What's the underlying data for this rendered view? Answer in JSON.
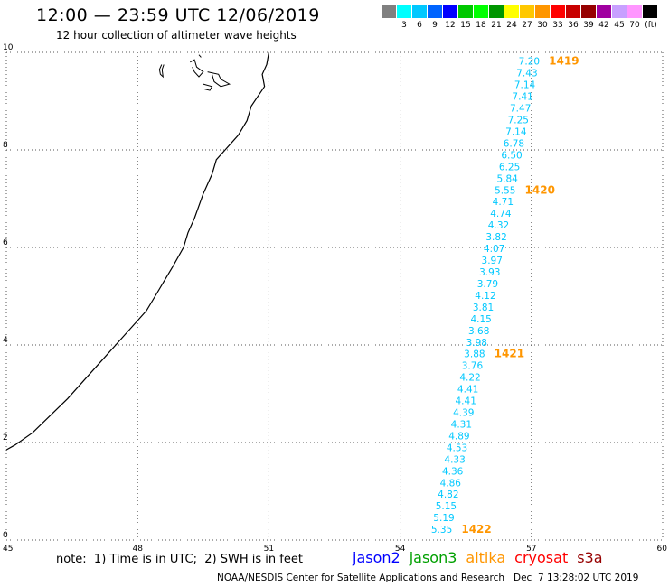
{
  "header": {
    "title": "12:00 — 23:59 UTC 12/06/2019",
    "subtitle": "12 hour collection of altimeter wave heights"
  },
  "color_scale": {
    "unit": "(ft)",
    "entries": [
      {
        "label": "",
        "color": "#808080"
      },
      {
        "label": "3",
        "color": "#00ffff"
      },
      {
        "label": "6",
        "color": "#00c8ff"
      },
      {
        "label": "9",
        "color": "#0064ff"
      },
      {
        "label": "12",
        "color": "#0000ff"
      },
      {
        "label": "15",
        "color": "#00c800"
      },
      {
        "label": "18",
        "color": "#00ff00"
      },
      {
        "label": "21",
        "color": "#009600"
      },
      {
        "label": "24",
        "color": "#ffff00"
      },
      {
        "label": "27",
        "color": "#ffc800"
      },
      {
        "label": "30",
        "color": "#ff9600"
      },
      {
        "label": "33",
        "color": "#ff0000"
      },
      {
        "label": "36",
        "color": "#c80000"
      },
      {
        "label": "39",
        "color": "#960000"
      },
      {
        "label": "42",
        "color": "#a000a0"
      },
      {
        "label": "45",
        "color": "#c8a0ff"
      },
      {
        "label": "70",
        "color": "#ff96ff"
      },
      {
        "label": "",
        "color": "#000000"
      }
    ]
  },
  "chart_data": {
    "type": "scatter",
    "xlim": [
      45,
      60
    ],
    "ylim": [
      0,
      10
    ],
    "x_ticks": [
      "45",
      "48",
      "51",
      "54",
      "57",
      "60"
    ],
    "y_ticks": [
      "0",
      "2",
      "4",
      "6",
      "8",
      "10"
    ],
    "grid": true,
    "point_color": "#00c8ff",
    "time_label_color": "#ff9600",
    "points": [
      {
        "x": 56.95,
        "y": 9.82,
        "value": "7.20"
      },
      {
        "x": 56.9,
        "y": 9.58,
        "value": "7.43"
      },
      {
        "x": 56.85,
        "y": 9.34,
        "value": "7.14"
      },
      {
        "x": 56.8,
        "y": 9.1,
        "value": "7.41"
      },
      {
        "x": 56.75,
        "y": 8.86,
        "value": "7.47"
      },
      {
        "x": 56.7,
        "y": 8.62,
        "value": "7.25"
      },
      {
        "x": 56.65,
        "y": 8.38,
        "value": "7.14"
      },
      {
        "x": 56.6,
        "y": 8.14,
        "value": "6.78"
      },
      {
        "x": 56.55,
        "y": 7.9,
        "value": "6.50"
      },
      {
        "x": 56.5,
        "y": 7.66,
        "value": "6.25"
      },
      {
        "x": 56.45,
        "y": 7.42,
        "value": "5.84"
      },
      {
        "x": 56.4,
        "y": 7.18,
        "value": "5.55"
      },
      {
        "x": 56.35,
        "y": 6.94,
        "value": "4.71"
      },
      {
        "x": 56.3,
        "y": 6.7,
        "value": "4.74"
      },
      {
        "x": 56.25,
        "y": 6.46,
        "value": "4.32"
      },
      {
        "x": 56.2,
        "y": 6.22,
        "value": "3.82"
      },
      {
        "x": 56.15,
        "y": 5.98,
        "value": "4.07"
      },
      {
        "x": 56.1,
        "y": 5.74,
        "value": "3.97"
      },
      {
        "x": 56.05,
        "y": 5.5,
        "value": "3.93"
      },
      {
        "x": 56.0,
        "y": 5.26,
        "value": "3.79"
      },
      {
        "x": 55.95,
        "y": 5.02,
        "value": "4.12"
      },
      {
        "x": 55.9,
        "y": 4.78,
        "value": "3.81"
      },
      {
        "x": 55.85,
        "y": 4.54,
        "value": "4.15"
      },
      {
        "x": 55.8,
        "y": 4.3,
        "value": "3.68"
      },
      {
        "x": 55.75,
        "y": 4.06,
        "value": "3.98"
      },
      {
        "x": 55.7,
        "y": 3.82,
        "value": "3.88"
      },
      {
        "x": 55.65,
        "y": 3.58,
        "value": "3.76"
      },
      {
        "x": 55.6,
        "y": 3.34,
        "value": "4.22"
      },
      {
        "x": 55.55,
        "y": 3.1,
        "value": "4.41"
      },
      {
        "x": 55.5,
        "y": 2.86,
        "value": "4.41"
      },
      {
        "x": 55.45,
        "y": 2.62,
        "value": "4.39"
      },
      {
        "x": 55.4,
        "y": 2.38,
        "value": "4.31"
      },
      {
        "x": 55.35,
        "y": 2.14,
        "value": "4.89"
      },
      {
        "x": 55.3,
        "y": 1.9,
        "value": "4.53"
      },
      {
        "x": 55.25,
        "y": 1.66,
        "value": "4.33"
      },
      {
        "x": 55.2,
        "y": 1.42,
        "value": "4.36"
      },
      {
        "x": 55.15,
        "y": 1.18,
        "value": "4.86"
      },
      {
        "x": 55.1,
        "y": 0.94,
        "value": "4.82"
      },
      {
        "x": 55.05,
        "y": 0.7,
        "value": "5.15"
      },
      {
        "x": 55.0,
        "y": 0.46,
        "value": "5.19"
      },
      {
        "x": 54.95,
        "y": 0.22,
        "value": "5.35"
      }
    ],
    "time_labels": [
      {
        "x": 57.4,
        "y": 9.82,
        "label": "1419"
      },
      {
        "x": 56.85,
        "y": 7.18,
        "label": "1420"
      },
      {
        "x": 56.15,
        "y": 3.82,
        "label": "1421"
      },
      {
        "x": 55.4,
        "y": 0.22,
        "label": "1422"
      }
    ],
    "coastline": [
      [
        51.0,
        10.0
      ],
      [
        50.95,
        9.75
      ],
      [
        50.85,
        9.55
      ],
      [
        50.9,
        9.3
      ],
      [
        50.75,
        9.1
      ],
      [
        50.6,
        8.9
      ],
      [
        50.5,
        8.6
      ],
      [
        50.3,
        8.3
      ],
      [
        50.0,
        8.0
      ],
      [
        49.8,
        7.8
      ],
      [
        49.7,
        7.5
      ],
      [
        49.5,
        7.1
      ],
      [
        49.3,
        6.6
      ],
      [
        49.15,
        6.3
      ],
      [
        49.05,
        6.0
      ],
      [
        48.8,
        5.6
      ],
      [
        48.6,
        5.3
      ],
      [
        48.4,
        5.0
      ],
      [
        48.2,
        4.7
      ],
      [
        48.0,
        4.5
      ],
      [
        47.6,
        4.1
      ],
      [
        47.2,
        3.7
      ],
      [
        46.8,
        3.3
      ],
      [
        46.4,
        2.9
      ],
      [
        46.0,
        2.55
      ],
      [
        45.6,
        2.2
      ],
      [
        45.2,
        1.95
      ],
      [
        45.0,
        1.85
      ]
    ],
    "islands": [
      [
        [
          48.55,
          9.75
        ],
        [
          48.5,
          9.65
        ],
        [
          48.52,
          9.55
        ],
        [
          48.58,
          9.5
        ],
        [
          48.56,
          9.65
        ],
        [
          48.6,
          9.75
        ]
      ],
      [
        [
          49.2,
          9.8
        ],
        [
          49.3,
          9.85
        ],
        [
          49.35,
          9.7
        ],
        [
          49.5,
          9.6
        ],
        [
          49.4,
          9.5
        ],
        [
          49.3,
          9.6
        ],
        [
          49.25,
          9.7
        ]
      ],
      [
        [
          49.6,
          9.6
        ],
        [
          49.85,
          9.55
        ],
        [
          49.9,
          9.45
        ],
        [
          50.1,
          9.35
        ],
        [
          49.9,
          9.3
        ],
        [
          49.75,
          9.4
        ],
        [
          49.7,
          9.55
        ]
      ],
      [
        [
          49.5,
          9.35
        ],
        [
          49.7,
          9.3
        ],
        [
          49.65,
          9.22
        ],
        [
          49.52,
          9.25
        ]
      ],
      [
        [
          49.4,
          9.95
        ],
        [
          49.45,
          9.9
        ]
      ]
    ]
  },
  "note": "note:  1) Time is in UTC;  2) SWH is in feet",
  "legend": [
    {
      "name": "jason2",
      "color": "#0000ff"
    },
    {
      "name": "jason3",
      "color": "#00a000"
    },
    {
      "name": "altika",
      "color": "#ff9600"
    },
    {
      "name": "cryosat",
      "color": "#ff0000"
    },
    {
      "name": "s3a",
      "color": "#960000"
    }
  ],
  "footer": "NOAA/NESDIS Center for Satellite Applications and Research   Dec  7 13:28:02 UTC 2019"
}
